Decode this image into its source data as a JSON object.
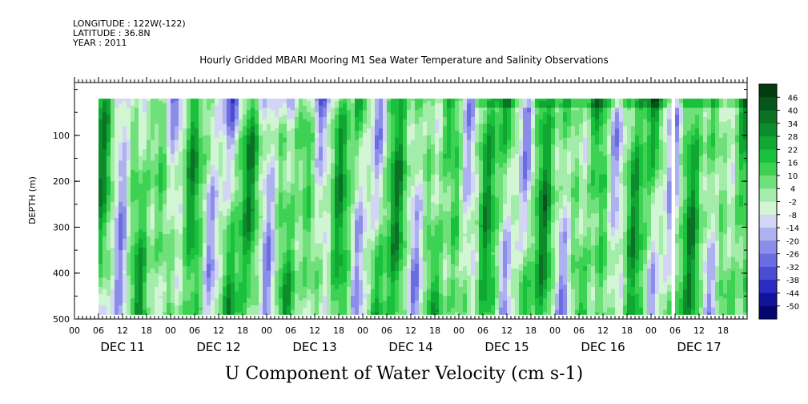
{
  "header": {
    "longitude": "LONGITUDE : 122W(-122)",
    "latitude": "LATITUDE : 36.8N",
    "year": "YEAR : 2011"
  },
  "chart_data": {
    "type": "heatmap",
    "title": "Hourly Gridded MBARI Mooring M1 Sea Water Temperature and Salinity Observations",
    "subtitle": "U Component of Water Velocity (cm s-1)",
    "ylabel": "DEPTH (m)",
    "ylim": [
      500,
      0
    ],
    "y_ticks": [
      100,
      200,
      300,
      400,
      500
    ],
    "y_tick_labels": [
      "100",
      "200",
      "300",
      "400",
      "500"
    ],
    "x_hour_labels": [
      "00",
      "06",
      "12",
      "18",
      "00",
      "06",
      "12",
      "18",
      "00",
      "06",
      "12",
      "18",
      "00",
      "06",
      "12",
      "18",
      "00",
      "06",
      "12",
      "18",
      "00",
      "06",
      "12",
      "18",
      "00",
      "06",
      "12",
      "18"
    ],
    "x_day_labels": [
      "DEC 11",
      "DEC 12",
      "DEC 13",
      "DEC 14",
      "DEC 15",
      "DEC 16",
      "DEC 17"
    ],
    "data_extent": {
      "start_hour": 6,
      "end_hour": 168,
      "depth_top": 20,
      "depth_bottom": 490
    },
    "gap_hours": [
      149,
      150
    ],
    "colorbar": {
      "levels": [
        "46",
        "40",
        "34",
        "28",
        "22",
        "16",
        "10",
        "4",
        "-2",
        "-8",
        "-14",
        "-20",
        "-26",
        "-32",
        "-38",
        "-44",
        "-50"
      ],
      "colors": [
        "#013d0e",
        "#05561a",
        "#0a7125",
        "#0d8c2c",
        "#10a833",
        "#19c13d",
        "#3dd253",
        "#6fe07a",
        "#a4ecaa",
        "#d2f5d4",
        "#d3d5f5",
        "#aeb1f0",
        "#8a8ee8",
        "#6a6ddf",
        "#4a4dd2",
        "#2a2cc0",
        "#12139b",
        "#050571"
      ]
    },
    "notes": "Alternating bands of positive (green, eastward) and negative (blue/purple, westward) velocity through the water column; stronger negative flow near surface on Dec 11-13; data gap near Dec 17 06."
  }
}
